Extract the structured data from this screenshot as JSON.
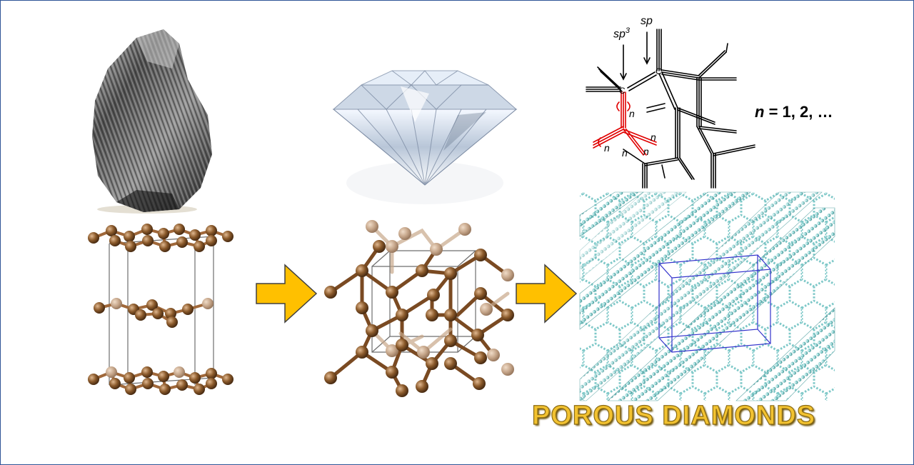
{
  "figure": {
    "sp3_label": "sp",
    "sp3_superscript": "3",
    "sp_label": "sp",
    "n_symbol": "n",
    "n_values": " = 1, 2, …",
    "n_repeat_label": "n",
    "title": "POROUS DIAMONDS"
  },
  "colors": {
    "frame_border": "#2f5597",
    "atom_brown": "#8b5a2b",
    "bond_brown": "#a0683a",
    "arrow_fill": "#ffc000",
    "arrow_stroke": "#404040",
    "porous_teal": "#7ec8c8",
    "unit_cell_blue": "#3333cc",
    "chemistry_red": "#e00000",
    "title_gold": "#f2c230"
  },
  "panels": [
    "graphite-mineral",
    "diamond-gem",
    "acetylenic-porous-diamond-structure"
  ],
  "icons": [
    "graphite-rock-image",
    "diamond-gem-image",
    "graphite-lattice-model",
    "diamond-lattice-model",
    "porous-diamond-lattice-model",
    "right-arrow-icon"
  ]
}
